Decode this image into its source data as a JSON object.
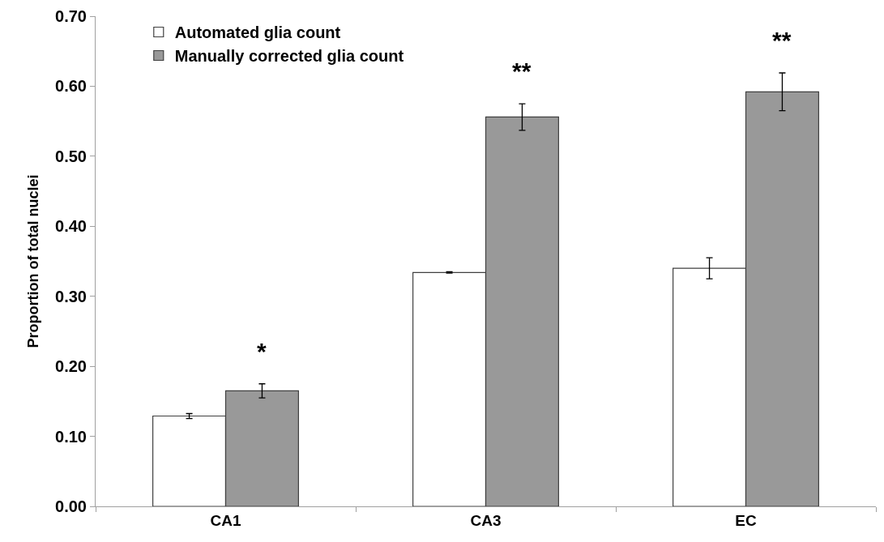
{
  "chart_data": {
    "type": "bar",
    "ylabel": "Proportion of total nuclei",
    "categories": [
      "CA1",
      "CA3",
      "EC"
    ],
    "series": [
      {
        "name": "Automated glia count",
        "color": "#ffffff",
        "values": [
          0.129,
          0.334,
          0.34
        ],
        "errors": [
          0.0035,
          0.001,
          0.015
        ]
      },
      {
        "name": "Manually corrected glia count",
        "color": "#999999",
        "values": [
          0.165,
          0.556,
          0.592
        ],
        "errors": [
          0.01,
          0.019,
          0.027
        ]
      }
    ],
    "ylim": [
      0,
      0.7
    ],
    "yticks": [
      {
        "value": 0,
        "label": "0.00"
      },
      {
        "value": 0.1,
        "label": "0.10"
      },
      {
        "value": 0.2,
        "label": "0.20"
      },
      {
        "value": 0.3,
        "label": "0.30"
      },
      {
        "value": 0.4,
        "label": "0.40"
      },
      {
        "value": 0.5,
        "label": "0.50"
      },
      {
        "value": 0.6,
        "label": "0.60"
      },
      {
        "value": 0.7,
        "label": "0.70"
      }
    ],
    "annotations": [
      "*",
      "**",
      "**"
    ],
    "legend": "top left"
  }
}
